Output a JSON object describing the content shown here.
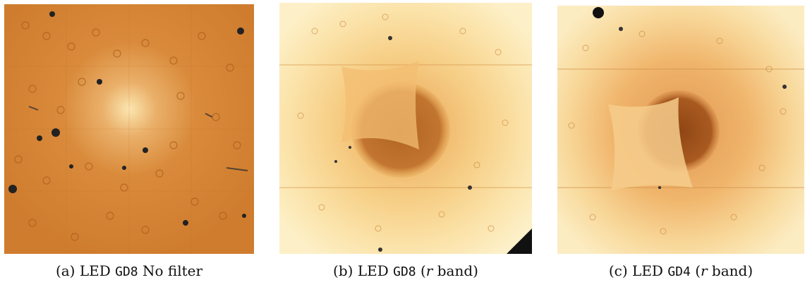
{
  "figure": {
    "panels": [
      {
        "id": "a",
        "label": "(a)",
        "pre": "LED",
        "code": "GD8",
        "post": "No filter",
        "italic": "",
        "close": "",
        "open": ""
      },
      {
        "id": "b",
        "label": "(b)",
        "pre": "LED",
        "code": "GD8",
        "open": "(",
        "italic": "r",
        "post": "band)",
        "close": ""
      },
      {
        "id": "c",
        "label": "(c)",
        "pre": "LED",
        "code": "GD4",
        "open": "(",
        "italic": "r",
        "post": "band)",
        "close": ""
      }
    ]
  },
  "colors": {
    "panel_a_base": "#d98a3a",
    "panel_b_base": "#fbe2a8",
    "panel_c_base": "#f8d89a",
    "dark_blob": "#b0641e"
  }
}
